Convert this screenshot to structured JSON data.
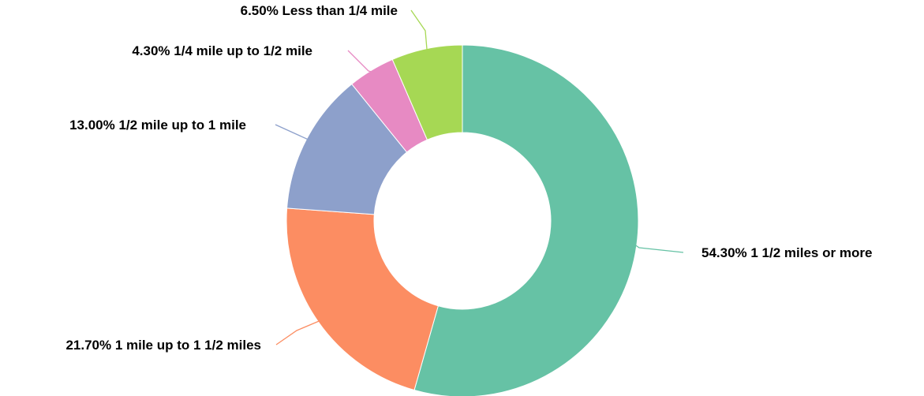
{
  "chart_data": {
    "type": "pie",
    "donut": true,
    "title": "",
    "slices": [
      {
        "value": 54.3,
        "label": "54.30% 1 1/2 miles or more",
        "color": "#66c2a5"
      },
      {
        "value": 21.7,
        "label": "21.70% 1 mile up to 1 1/2 miles",
        "color": "#fc8d62"
      },
      {
        "value": 13.0,
        "label": "13.00% 1/2 mile up to 1 mile",
        "color": "#8da0cb"
      },
      {
        "value": 4.3,
        "label": "4.30% 1/4 mile up to 1/2 mile",
        "color": "#e78ac3"
      },
      {
        "value": 6.5,
        "label": "6.50% Less than 1/4 mile",
        "color": "#a6d854"
      }
    ]
  }
}
